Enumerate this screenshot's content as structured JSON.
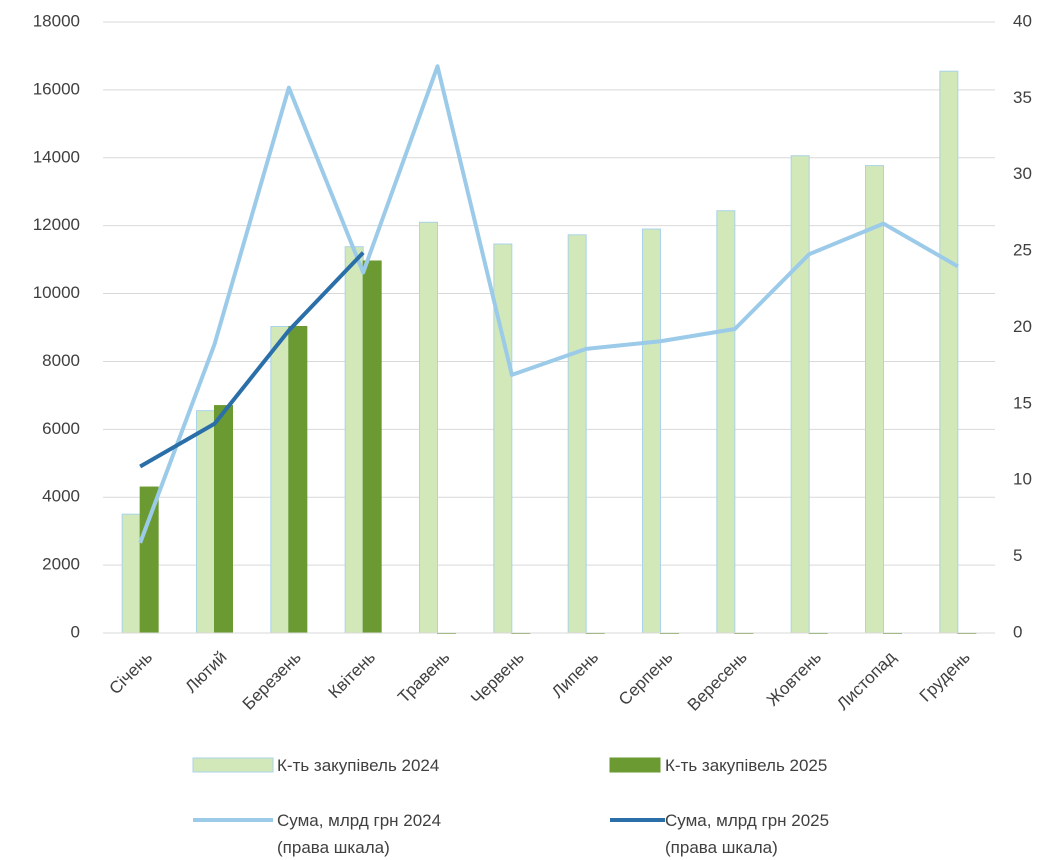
{
  "chart_data": {
    "type": "bar-line",
    "categories": [
      "Січень",
      "Лютий",
      "Березень",
      "Квітень",
      "Травень",
      "Червень",
      "Липень",
      "Серпень",
      "Вересень",
      "Жовтень",
      "Листопад",
      "Грудень"
    ],
    "series": [
      {
        "name": "К-ть закупівель 2024",
        "type": "bar",
        "color": "#d3e8b9",
        "edge": "#a9d3e8",
        "values": [
          3500,
          6550,
          9030,
          11380,
          12100,
          11460,
          11730,
          11900,
          12440,
          14060,
          13770,
          16550
        ]
      },
      {
        "name": "К-ть закупівель 2025",
        "type": "bar",
        "color": "#6a9a31",
        "edge": "#6a9a31",
        "values": [
          4300,
          6700,
          9030,
          10960,
          0,
          0,
          0,
          0,
          0,
          0,
          0,
          0
        ]
      },
      {
        "name": "Сума, млрд грн 2024\n(права шкала)",
        "type": "line",
        "axis": "y2",
        "color": "#9ccbe9",
        "values": [
          5.9,
          18.9,
          35.7,
          23.6,
          37.1,
          16.9,
          18.6,
          19.1,
          19.9,
          24.8,
          26.8,
          24.0
        ]
      },
      {
        "name": "Сума, млрд грн 2025\n(права шкала)",
        "type": "line",
        "axis": "y2",
        "color": "#2a6fa8",
        "values": [
          10.9,
          13.7,
          19.8,
          24.9,
          null,
          null,
          null,
          null,
          null,
          null,
          null,
          null
        ]
      }
    ],
    "ylim": [
      0,
      18000
    ],
    "yticks": [
      0,
      2000,
      4000,
      6000,
      8000,
      10000,
      12000,
      14000,
      16000,
      18000
    ],
    "y2lim": [
      0,
      40
    ],
    "y2ticks": [
      0,
      5,
      10,
      15,
      20,
      25,
      30,
      35,
      40
    ],
    "grid": true,
    "legend": "bottom"
  }
}
